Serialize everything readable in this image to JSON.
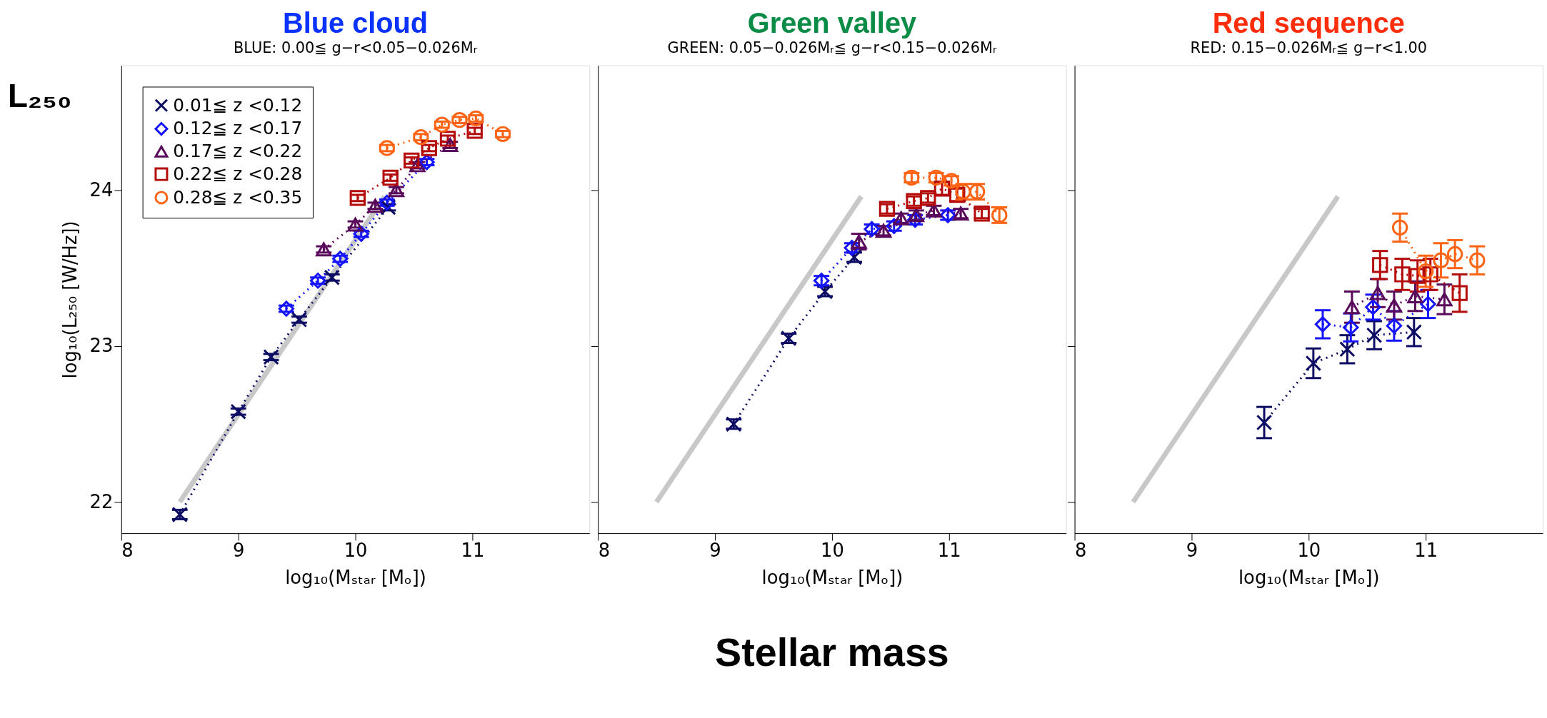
{
  "chart_data": [
    {
      "type": "line",
      "title": "Blue cloud",
      "subtitle": "BLUE: 0.00≦ g−r<0.05−0.026Mᵣ",
      "xlabel": "log₁₀(Mₛₜₐᵣ [Mₒ])",
      "ylabel": "log₁₀(L₂₅₀ [W/Hz])",
      "annotations": [
        "L₂₅₀"
      ],
      "xlim": [
        8,
        12
      ],
      "ylim": [
        21.8,
        24.8
      ],
      "xticks": [
        8,
        9,
        10,
        11
      ],
      "yticks": [
        22,
        23,
        24
      ],
      "grid": false,
      "legend": "top left",
      "series": [
        {
          "type": "line",
          "color": "#c8c8c8",
          "marker": "none",
          "line_style": "solid",
          "x": [
            8.5,
            10.25
          ],
          "values": [
            22.0,
            23.96
          ]
        },
        {
          "name": "0.01≦ z <0.12",
          "color": "#0c0c64",
          "marker": "cross",
          "line_style": "dotted",
          "x": [
            8.5,
            9.0,
            9.28,
            9.52,
            9.8,
            10.28
          ],
          "values": [
            21.92,
            22.58,
            22.93,
            23.17,
            23.44,
            23.89
          ],
          "errors": [
            0.03,
            0.02,
            0.02,
            0.02,
            0.02,
            0.02
          ]
        },
        {
          "name": "0.12≦ z <0.17",
          "color": "#1414ff",
          "marker": "diamond",
          "line_style": "dotted",
          "x": [
            9.41,
            9.68,
            9.87,
            10.05,
            10.27,
            10.61
          ],
          "values": [
            23.24,
            23.42,
            23.56,
            23.72,
            23.92,
            24.18
          ],
          "errors": [
            0.02,
            0.02,
            0.02,
            0.02,
            0.02,
            0.02
          ]
        },
        {
          "name": "0.17≦ z <0.22",
          "color": "#5a0a5a",
          "marker": "triangle",
          "line_style": "dotted",
          "x": [
            9.73,
            10.0,
            10.17,
            10.35,
            10.53,
            10.81
          ],
          "values": [
            23.62,
            23.78,
            23.9,
            24.0,
            24.16,
            24.29
          ],
          "errors": [
            0.02,
            0.02,
            0.02,
            0.02,
            0.02,
            0.02
          ]
        },
        {
          "name": "0.22≦ z <0.28",
          "color": "#b40a0a",
          "marker": "square",
          "line_style": "dotted",
          "x": [
            10.02,
            10.3,
            10.48,
            10.63,
            10.79,
            11.02
          ],
          "values": [
            23.95,
            24.08,
            24.19,
            24.27,
            24.33,
            24.38
          ],
          "errors": [
            0.02,
            0.02,
            0.02,
            0.02,
            0.02,
            0.02
          ]
        },
        {
          "name": "0.28≦ z <0.35",
          "color": "#ff6414",
          "marker": "circle",
          "line_style": "dotted",
          "x": [
            10.27,
            10.56,
            10.74,
            10.89,
            11.03,
            11.26
          ],
          "values": [
            24.27,
            24.34,
            24.42,
            24.45,
            24.46,
            24.36
          ],
          "errors": [
            0.02,
            0.02,
            0.02,
            0.02,
            0.02,
            0.02
          ]
        }
      ]
    },
    {
      "type": "line",
      "title": "Green valley",
      "subtitle": "GREEN: 0.05−0.026Mᵣ≦ g−r<0.15−0.026Mᵣ",
      "xlabel": "log₁₀(Mₛₜₐᵣ [Mₒ])",
      "annotations": [
        "Stellar mass"
      ],
      "xlim": [
        8,
        12
      ],
      "ylim": [
        21.8,
        24.8
      ],
      "xticks": [
        8,
        9,
        10,
        11
      ],
      "yticks": [
        22,
        23,
        24
      ],
      "grid": false,
      "tick_labels": "x",
      "series": [
        {
          "type": "line",
          "color": "#c8c8c8",
          "marker": "none",
          "line_style": "solid",
          "x": [
            8.5,
            10.25
          ],
          "values": [
            22.0,
            23.96
          ]
        },
        {
          "color": "#0c0c64",
          "marker": "cross",
          "line_style": "dotted",
          "x": [
            9.16,
            9.63,
            9.94,
            10.19
          ],
          "values": [
            22.5,
            23.05,
            23.35,
            23.57
          ],
          "errors": [
            0.03,
            0.03,
            0.03,
            0.03
          ]
        },
        {
          "color": "#1414ff",
          "marker": "diamond",
          "line_style": "dotted",
          "x": [
            9.91,
            10.17,
            10.34,
            10.53,
            10.71,
            10.99
          ],
          "values": [
            23.42,
            23.63,
            23.75,
            23.77,
            23.81,
            23.84
          ],
          "errors": [
            0.03,
            0.03,
            0.03,
            0.03,
            0.03,
            0.03
          ]
        },
        {
          "color": "#5a0a5a",
          "marker": "triangle",
          "line_style": "dotted",
          "x": [
            10.23,
            10.44,
            10.59,
            10.72,
            10.87,
            11.1
          ],
          "values": [
            23.67,
            23.74,
            23.82,
            23.84,
            23.87,
            23.85
          ],
          "errors": [
            0.05,
            0.03,
            0.03,
            0.03,
            0.03,
            0.03
          ]
        },
        {
          "color": "#b40a0a",
          "marker": "square",
          "line_style": "dotted",
          "x": [
            10.47,
            10.7,
            10.82,
            10.94,
            11.07,
            11.28
          ],
          "values": [
            23.88,
            23.93,
            23.95,
            24.01,
            23.97,
            23.85
          ],
          "errors": [
            0.03,
            0.03,
            0.03,
            0.04,
            0.04,
            0.03
          ]
        },
        {
          "color": "#ff6414",
          "marker": "circle",
          "line_style": "dotted",
          "x": [
            10.68,
            10.89,
            11.02,
            11.12,
            11.24,
            11.43
          ],
          "values": [
            24.08,
            24.08,
            24.06,
            23.99,
            23.99,
            23.84
          ],
          "errors": [
            0.03,
            0.03,
            0.03,
            0.05,
            0.05,
            0.05
          ]
        }
      ]
    },
    {
      "type": "line",
      "title": "Red sequence",
      "subtitle": "RED: 0.15−0.026Mᵣ≦ g−r<1.00",
      "xlabel": "log₁₀(Mₛₜₐᵣ [Mₒ])",
      "xlim": [
        8,
        12
      ],
      "ylim": [
        21.8,
        24.8
      ],
      "xticks": [
        8,
        9,
        10,
        11
      ],
      "yticks": [
        22,
        23,
        24
      ],
      "grid": false,
      "tick_labels": "x",
      "series": [
        {
          "type": "line",
          "color": "#c8c8c8",
          "marker": "none",
          "line_style": "solid",
          "x": [
            8.5,
            10.25
          ],
          "values": [
            22.0,
            23.96
          ]
        },
        {
          "color": "#0c0c64",
          "marker": "cross",
          "line_style": "dotted",
          "x": [
            9.62,
            10.04,
            10.33,
            10.56,
            10.9
          ],
          "values": [
            22.51,
            22.89,
            22.98,
            23.07,
            23.09
          ],
          "errors": [
            0.1,
            0.095,
            0.09,
            0.09,
            0.09
          ]
        },
        {
          "color": "#1414ff",
          "marker": "diamond",
          "line_style": "dotted",
          "x": [
            10.12,
            10.36,
            10.55,
            10.73,
            11.02
          ],
          "values": [
            23.14,
            23.12,
            23.25,
            23.13,
            23.27
          ],
          "errors": [
            0.09,
            0.09,
            0.08,
            0.095,
            0.09
          ]
        },
        {
          "color": "#5a0a5a",
          "marker": "triangle",
          "line_style": "dotted",
          "x": [
            10.37,
            10.59,
            10.73,
            10.91,
            11.16
          ],
          "values": [
            23.25,
            23.34,
            23.26,
            23.32,
            23.3
          ],
          "errors": [
            0.1,
            0.09,
            0.09,
            0.095,
            0.095
          ]
        },
        {
          "color": "#b40a0a",
          "marker": "square",
          "line_style": "dotted",
          "x": [
            10.61,
            10.8,
            10.93,
            11.04,
            11.29
          ],
          "values": [
            23.52,
            23.46,
            23.45,
            23.46,
            23.34
          ],
          "errors": [
            0.09,
            0.1,
            0.1,
            0.1,
            0.12
          ]
        },
        {
          "color": "#ff6414",
          "marker": "circle",
          "line_style": "dotted",
          "x": [
            10.78,
            11.0,
            11.13,
            11.25,
            11.44
          ],
          "values": [
            23.76,
            23.48,
            23.55,
            23.59,
            23.55
          ],
          "errors": [
            0.09,
            0.1,
            0.11,
            0.09,
            0.09
          ]
        }
      ]
    }
  ]
}
